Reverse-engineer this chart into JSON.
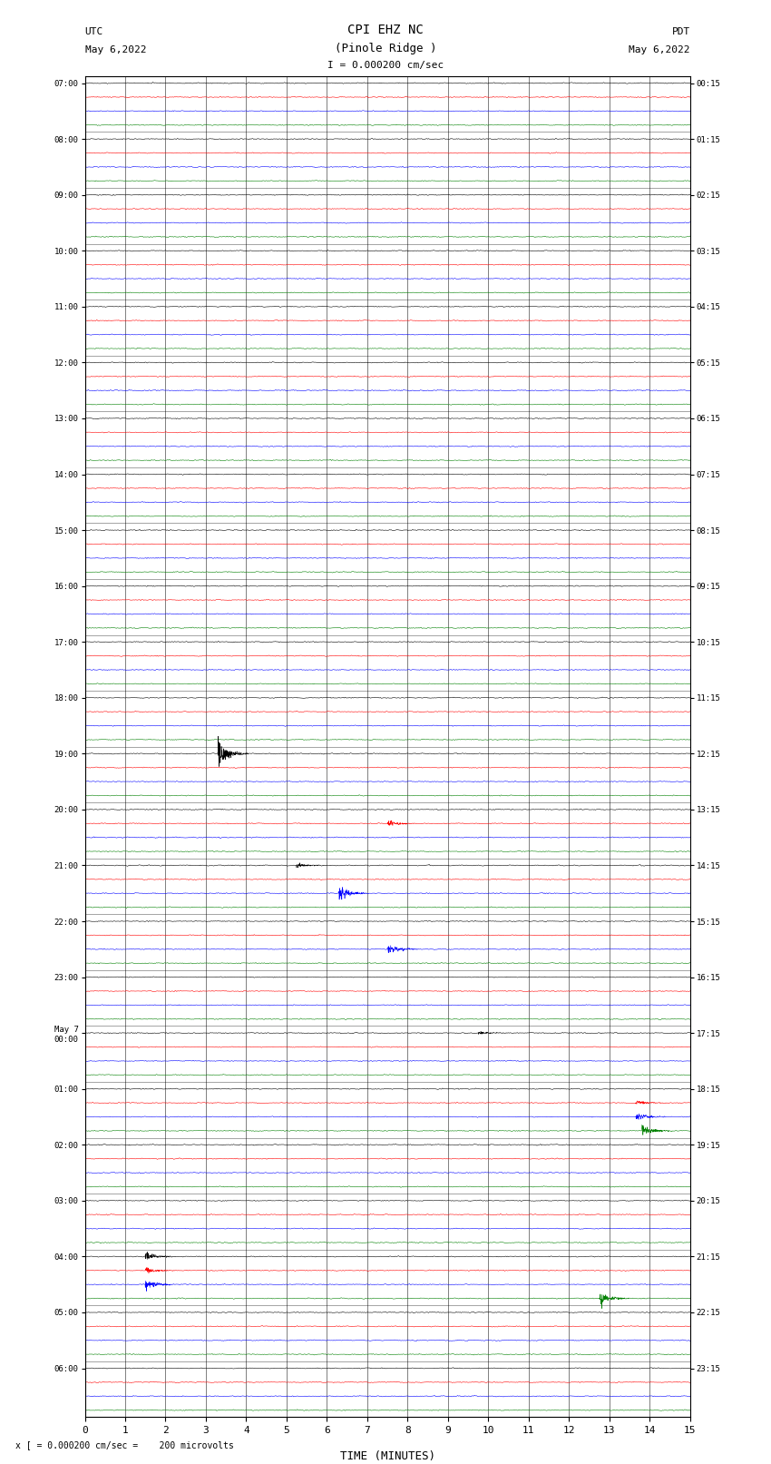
{
  "title_line1": "CPI EHZ NC",
  "title_line2": "(Pinole Ridge )",
  "scale_label": "= 0.000200 cm/sec",
  "left_label_line1": "UTC",
  "left_label_line2": "May 6,2022",
  "right_label_line1": "PDT",
  "right_label_line2": "May 6,2022",
  "bottom_label": "x [ = 0.000200 cm/sec =    200 microvolts",
  "xlabel": "TIME (MINUTES)",
  "colors": [
    "black",
    "red",
    "blue",
    "green"
  ],
  "bg_color": "white",
  "xlim": [
    0,
    15
  ],
  "xticks": [
    0,
    1,
    2,
    3,
    4,
    5,
    6,
    7,
    8,
    9,
    10,
    11,
    12,
    13,
    14,
    15
  ],
  "noise_scale": 0.03,
  "figsize": [
    8.5,
    16.13
  ],
  "dpi": 100,
  "left_times": [
    "07:00",
    "08:00",
    "09:00",
    "10:00",
    "11:00",
    "12:00",
    "13:00",
    "14:00",
    "15:00",
    "16:00",
    "17:00",
    "18:00",
    "19:00",
    "20:00",
    "21:00",
    "22:00",
    "23:00",
    "May 7\n00:00",
    "01:00",
    "02:00",
    "03:00",
    "04:00",
    "05:00",
    "06:00"
  ],
  "right_times": [
    "00:15",
    "01:15",
    "02:15",
    "03:15",
    "04:15",
    "05:15",
    "06:15",
    "07:15",
    "08:15",
    "09:15",
    "10:15",
    "11:15",
    "12:15",
    "13:15",
    "14:15",
    "15:15",
    "16:15",
    "17:15",
    "18:15",
    "19:15",
    "20:15",
    "21:15",
    "22:15",
    "23:15"
  ],
  "n_hours": 24,
  "traces_per_hour": 4
}
